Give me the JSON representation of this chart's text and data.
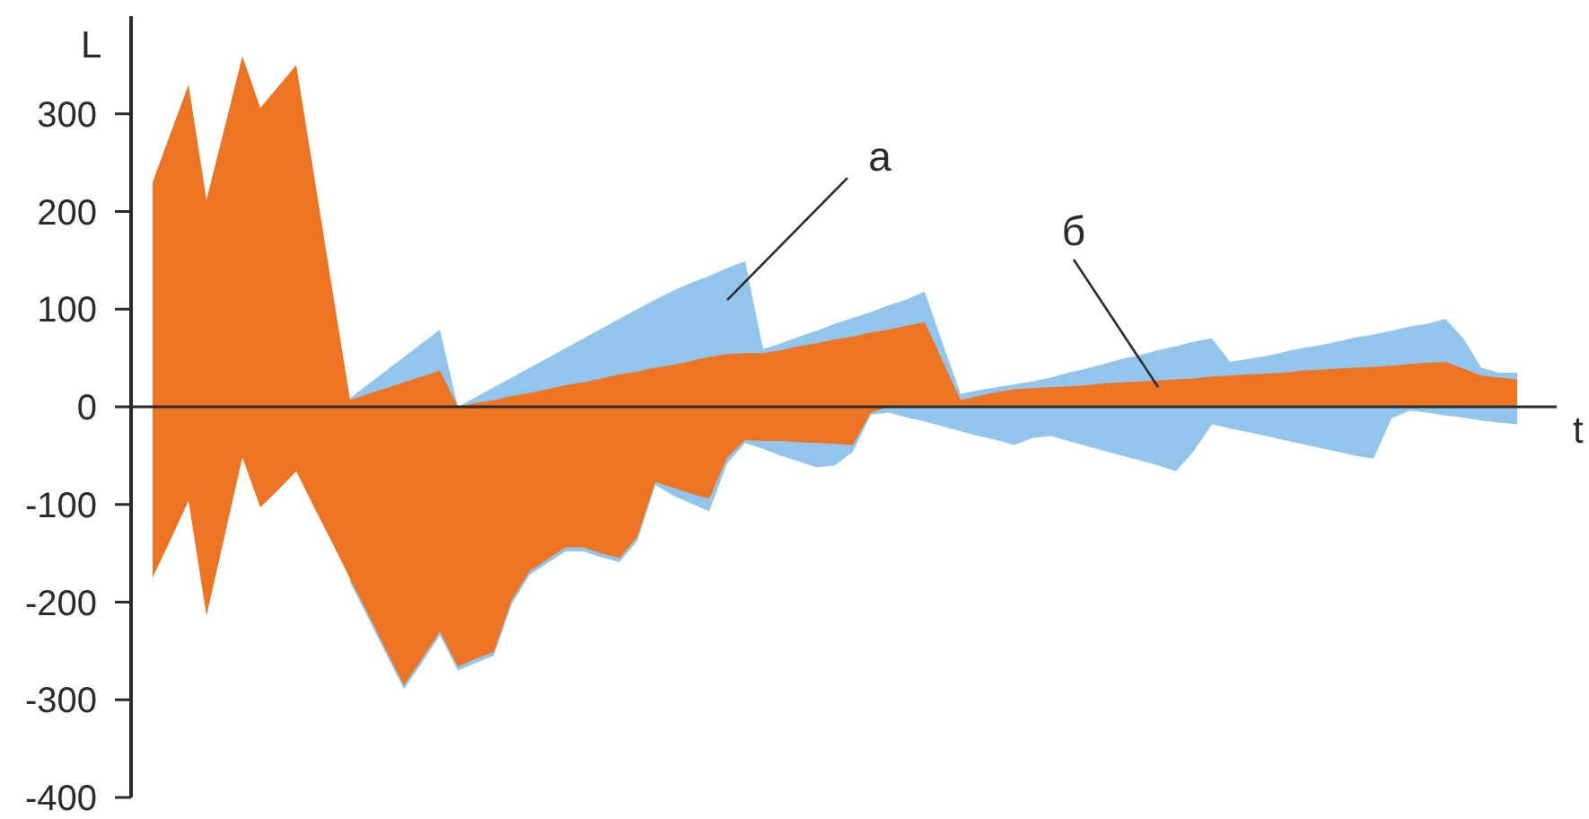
{
  "chart_data": {
    "type": "area",
    "xlabel": "t",
    "ylabel": "L",
    "annotations": [
      "б"
    ],
    "categories": [
      null,
      null,
      null,
      null,
      null,
      null,
      null,
      null,
      null,
      null,
      null,
      null,
      null,
      null,
      null,
      null,
      null,
      null,
      null,
      null,
      null,
      null,
      null,
      null,
      null,
      null,
      null,
      null,
      null,
      null,
      null,
      null,
      null,
      null,
      null,
      null,
      null,
      null,
      null,
      null,
      null,
      null,
      null,
      null,
      null,
      null,
      null,
      null,
      null,
      null,
      null,
      null,
      null,
      null,
      null,
      null,
      null,
      null,
      null,
      null,
      null,
      null,
      null,
      null,
      null,
      null,
      null,
      null,
      null,
      null,
      null,
      null,
      null,
      null,
      null,
      null,
      null
    ],
    "series": [
      {
        "name": "а",
        "color": "#92c5eb",
        "values": [
          null,
          null,
          null,
          null,
          null,
          null,
          null,
          null,
          null,
          null,
          null,
          9,
          23,
          37,
          51,
          65,
          79,
          0,
          10,
          20,
          30,
          40,
          50,
          60,
          70,
          80,
          90,
          100,
          110,
          119,
          127,
          134,
          142,
          149,
          59,
          65,
          72,
          78,
          85,
          91,
          97,
          104,
          110,
          118,
          65,
          13,
          17,
          20,
          23,
          26,
          30,
          35,
          39,
          44,
          49,
          53,
          58,
          62,
          67,
          70,
          46,
          49,
          52,
          56,
          60,
          63,
          67,
          71,
          74,
          78,
          82,
          85,
          90,
          70,
          40,
          35,
          35
        ]
      },
      {
        "color": "#91c5eb",
        "values": [
          null,
          null,
          null,
          null,
          null,
          null,
          null,
          null,
          null,
          null,
          null,
          -180,
          -216,
          -253,
          -289,
          -262,
          -234,
          -270,
          -262,
          -255,
          -202,
          -172,
          -160,
          -148,
          -148,
          -154,
          -159,
          -137,
          -80,
          -91,
          -99,
          -107,
          -58,
          -37,
          -43,
          -50,
          -56,
          -62,
          -60,
          -46,
          -8,
          -6,
          -11,
          -15,
          -20,
          -25,
          -30,
          -34,
          -39,
          -32,
          -30,
          -35,
          -40,
          -45,
          -50,
          -55,
          -60,
          -66,
          -45,
          -18,
          -22,
          -26,
          -30,
          -34,
          -38,
          -42,
          -46,
          -50,
          -53,
          -12,
          -4,
          -6,
          -9,
          -11,
          -14,
          -16,
          -18
        ]
      },
      {
        "color": "#ed7422",
        "values": [
          230,
          280,
          330,
          212,
          285,
          359,
          306,
          328,
          350,
          236,
          121,
          7,
          13,
          19,
          25,
          31,
          37,
          0,
          4,
          7,
          11,
          14,
          18,
          22,
          25,
          29,
          33,
          36,
          40,
          43,
          47,
          51,
          54,
          55,
          55,
          58,
          62,
          65,
          69,
          72,
          76,
          79,
          83,
          87,
          47,
          7,
          11,
          15,
          18,
          19,
          20,
          21,
          22,
          24,
          25,
          26,
          27,
          28,
          29,
          31,
          32,
          33,
          34,
          35,
          37,
          38,
          39,
          40,
          41,
          42,
          44,
          45,
          46,
          39,
          32,
          30,
          28
        ]
      },
      {
        "color": "#ec7422",
        "values": [
          -175,
          -136,
          -96,
          -214,
          -133,
          -52,
          -103,
          -85,
          -66,
          -103,
          -139,
          -176,
          -212,
          -249,
          -285,
          -258,
          -230,
          -266,
          -258,
          -251,
          -198,
          -168,
          -156,
          -144,
          -144,
          -150,
          -155,
          -133,
          -77,
          -83,
          -89,
          -94,
          -52,
          -34,
          -35,
          -35,
          -36,
          -37,
          -38,
          -39,
          -6,
          0,
          0,
          0,
          0,
          0,
          0,
          0,
          0,
          0,
          0,
          0,
          0,
          0,
          0,
          0,
          0,
          0,
          0,
          0,
          0,
          0,
          0,
          0,
          0,
          0,
          0,
          0,
          0,
          0,
          0,
          0,
          0,
          0,
          0,
          0,
          0
        ]
      }
    ],
    "ylim": [
      -400,
      400
    ],
    "yticks": [
      -400,
      -300,
      -200,
      -100,
      0,
      100,
      200,
      300
    ]
  }
}
